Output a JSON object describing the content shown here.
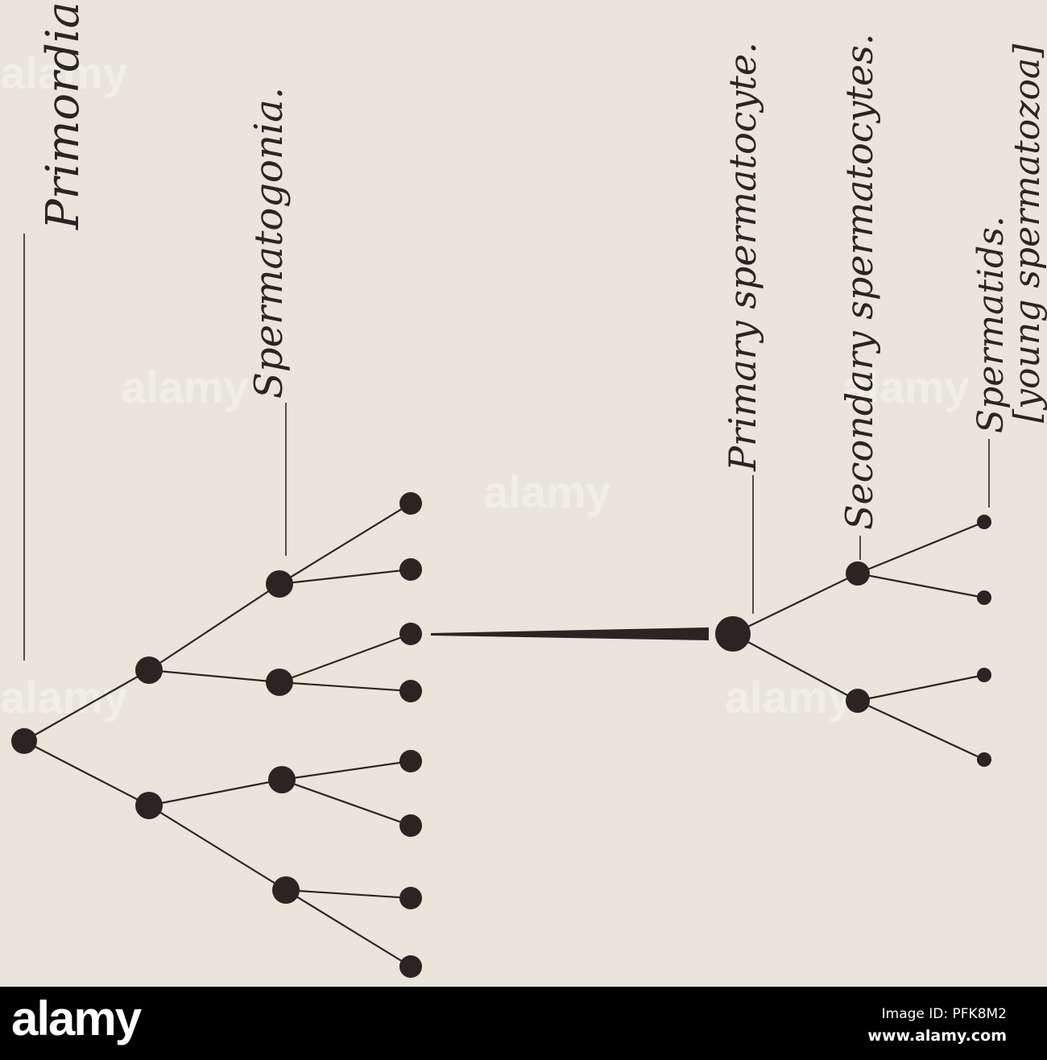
{
  "labels": {
    "primordial": "Primordia",
    "spermatogonia": "Spermatogonia.",
    "primary": "Primary spermatocyte.",
    "secondary": "Secondary spermatocytes.",
    "spermatids": "Spermatids.",
    "spermatids_note": "[young spermatozoa]"
  },
  "colors": {
    "ink": "#2a2522",
    "paper": "#e9e5da",
    "bar": "#000000"
  },
  "watermark": "alamy",
  "footer": {
    "logo": "alamy",
    "image_id": "Image ID: PFK8M2",
    "site": "www.alamy.com"
  }
}
